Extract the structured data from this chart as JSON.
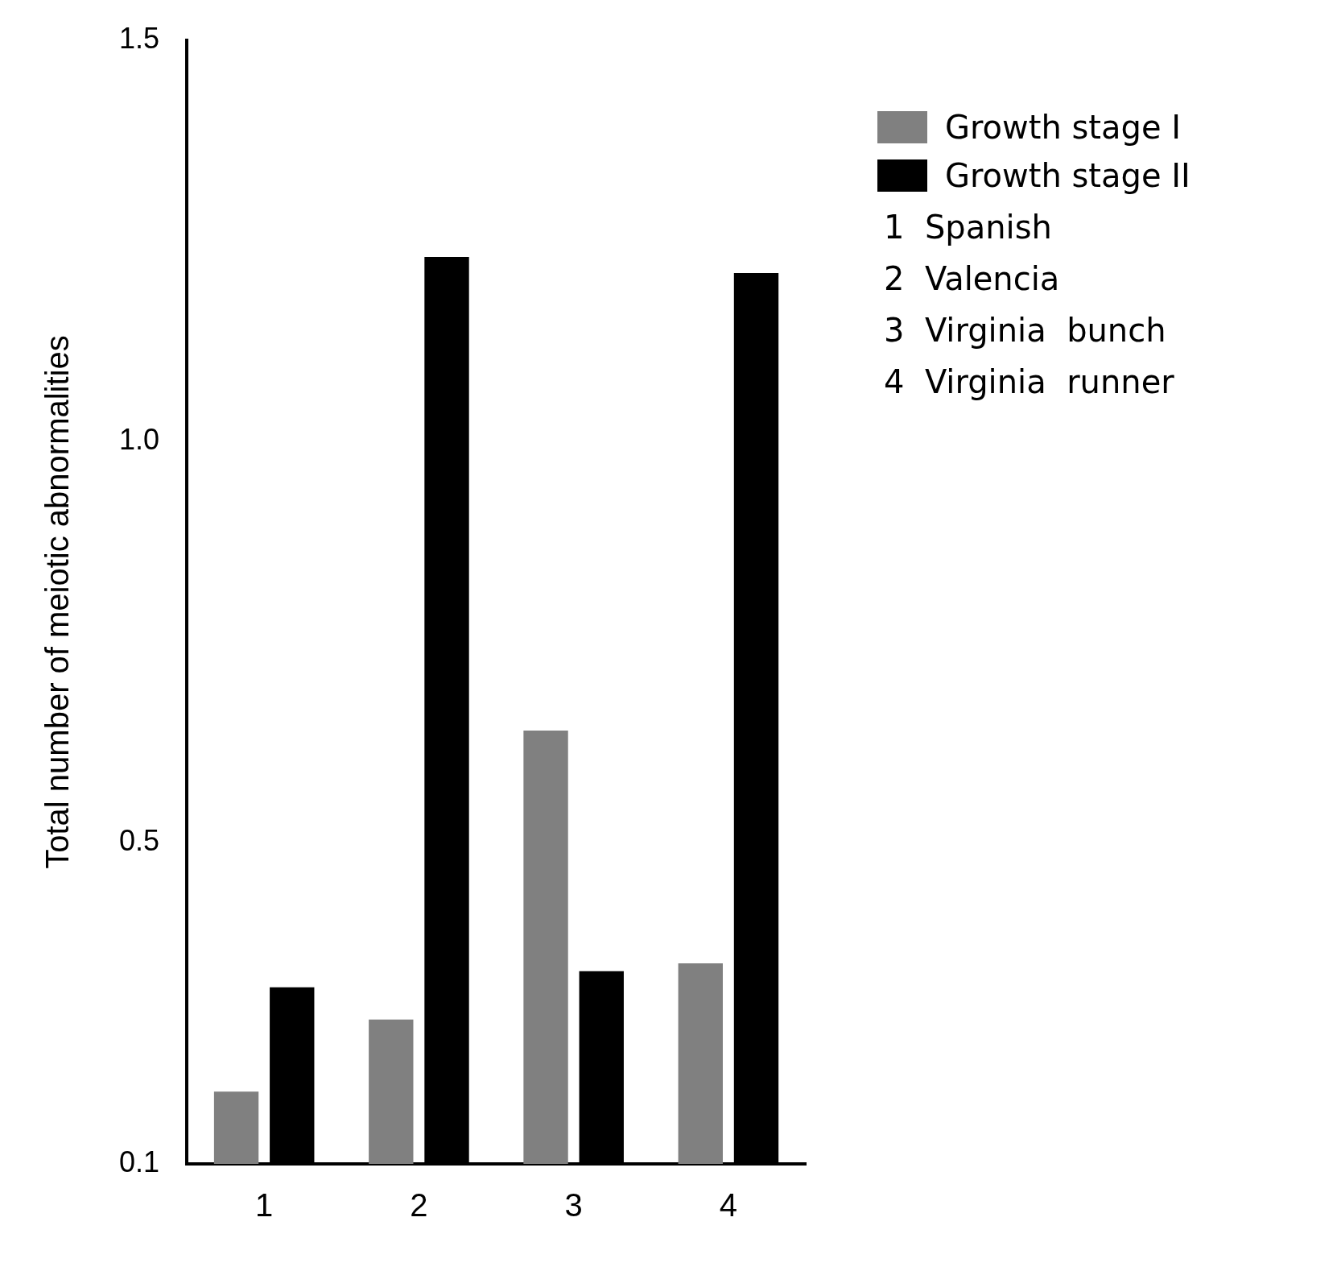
{
  "chart_data": {
    "type": "bar",
    "ylabel": "Total number of meiotic abnormalities",
    "categories": [
      "1",
      "2",
      "3",
      "4"
    ],
    "series": [
      {
        "name": "Growth stage I",
        "color": "#808080",
        "values": [
          0.19,
          0.28,
          0.64,
          0.35
        ]
      },
      {
        "name": "Growth stage II",
        "color": "#000000",
        "values": [
          0.32,
          1.23,
          0.34,
          1.21
        ]
      }
    ],
    "ylim": [
      0.1,
      1.5
    ],
    "yticks": [
      0.1,
      0.5,
      {
        "value": 1,
        "label": "1.0"
      },
      1.5
    ],
    "grid": false,
    "legend": "right",
    "annotations": [
      "1  Spanish",
      "2  Valencia",
      "3  Virginia  bunch",
      "4  Virginia  runner"
    ]
  }
}
